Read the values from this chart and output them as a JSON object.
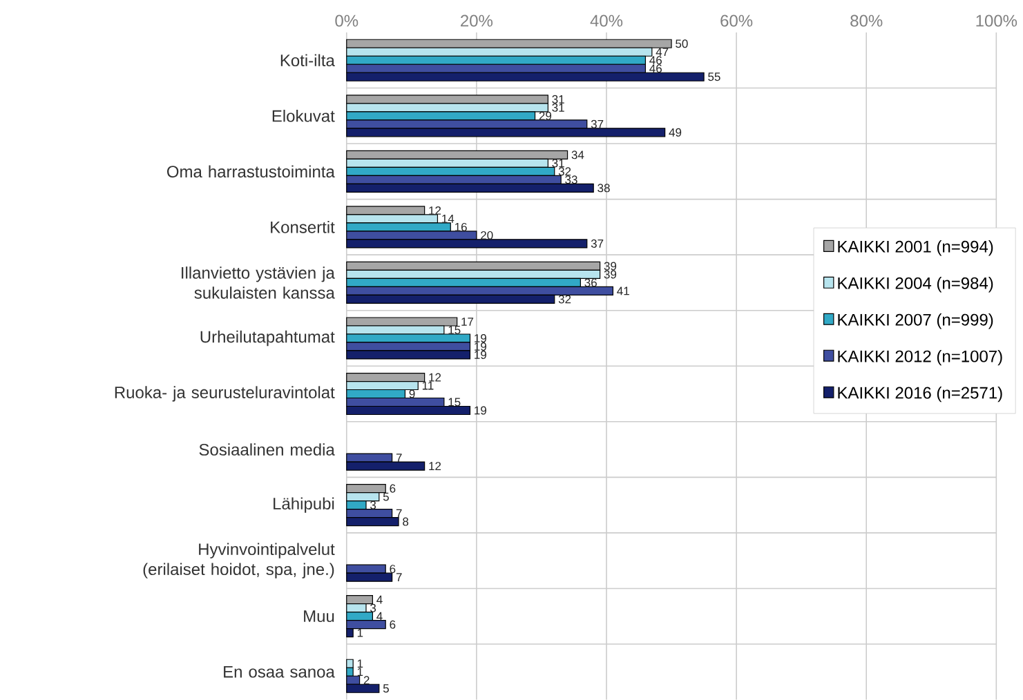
{
  "chart_data": {
    "type": "bar",
    "orientation": "horizontal",
    "categories": [
      "Koti-ilta",
      "Elokuvat",
      "Oma harrastustoiminta",
      "Konsertit",
      "Illanvietto ystävien ja sukulaisten kanssa",
      "Urheilutapahtumat",
      "Ruoka- ja seurusteluravintolat",
      "Sosiaalinen media",
      "Lähipubi",
      "Hyvinvointipalvelut (erilaiset hoidot, spa, jne.)",
      "Muu",
      "En osaa sanoa"
    ],
    "series": [
      {
        "name": "KAIKKI 2001 (n=994)",
        "color": "#a6a6a6",
        "values": [
          50,
          31,
          34,
          12,
          39,
          17,
          12,
          null,
          6,
          null,
          4,
          null
        ]
      },
      {
        "name": "KAIKKI 2004 (n=984)",
        "color": "#b7e4ee",
        "values": [
          47,
          31,
          31,
          14,
          39,
          15,
          11,
          null,
          5,
          null,
          3,
          1
        ]
      },
      {
        "name": "KAIKKI 2007 (n=999)",
        "color": "#31a9c6",
        "values": [
          46,
          29,
          32,
          16,
          36,
          19,
          9,
          null,
          3,
          null,
          4,
          1
        ]
      },
      {
        "name": "KAIKKI 2012 (n=1007)",
        "color": "#3f4ea0",
        "values": [
          46,
          37,
          33,
          20,
          41,
          19,
          15,
          7,
          7,
          6,
          6,
          2
        ]
      },
      {
        "name": "KAIKKI 2016 (n=2571)",
        "color": "#14206b",
        "values": [
          55,
          49,
          38,
          37,
          32,
          19,
          19,
          12,
          8,
          7,
          1,
          5
        ]
      }
    ],
    "xlim": [
      0,
      100
    ],
    "xticks": [
      {
        "value": 0,
        "label": "0%"
      },
      {
        "value": 20,
        "label": "20%"
      },
      {
        "value": 40,
        "label": "40%"
      },
      {
        "value": 60,
        "label": "60%"
      },
      {
        "value": 80,
        "label": "80%"
      },
      {
        "value": 100,
        "label": "100%"
      }
    ],
    "grid": true,
    "legend": "right",
    "data_labels": true
  }
}
